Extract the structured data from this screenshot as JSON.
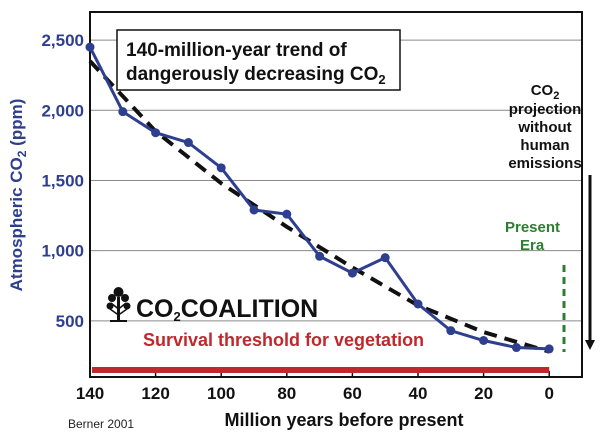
{
  "chart_data": {
    "type": "line",
    "title_line1": "140-million-year trend of",
    "title_line2_prefix": "dangerously decreasing CO",
    "title_line2_sub": "2",
    "ylabel_prefix": "Atmospheric CO",
    "ylabel_sub": "2",
    "ylabel_suffix": " (ppm)",
    "xlabel": "Million years before present",
    "xlim": [
      140,
      -10
    ],
    "ylim": [
      100,
      2700
    ],
    "x_ticks": [
      140,
      120,
      100,
      80,
      60,
      40,
      20,
      0
    ],
    "y_ticks": [
      500,
      1000,
      1500,
      2000,
      2500
    ],
    "y_tick_labels": [
      "500",
      "1,000",
      "1,500",
      "2,000",
      "2,500"
    ],
    "series": [
      {
        "x": [
          140,
          130,
          120,
          110,
          100,
          90,
          80,
          70,
          60,
          50,
          40,
          30,
          20,
          10,
          0
        ],
        "values": [
          2450,
          1990,
          1840,
          1770,
          1590,
          1290,
          1260,
          960,
          840,
          950,
          620,
          430,
          360,
          310,
          300
        ],
        "color": "#2e3f8f"
      }
    ],
    "trend_line": {
      "x": [
        140,
        120,
        100,
        80,
        60,
        40,
        20,
        0
      ],
      "values": [
        2350,
        1850,
        1480,
        1170,
        880,
        610,
        420,
        280
      ],
      "color": "#111111"
    },
    "survival_threshold": {
      "value": 150,
      "label": "Survival threshold for vegetation",
      "color": "#c0282d"
    },
    "present_era": {
      "label_line1": "Present",
      "label_line2": "Era",
      "color": "#2e7d32"
    },
    "projection": {
      "line1_prefix": "CO",
      "line1_sub": "2",
      "line2": "projection",
      "line3": "without",
      "line4": "human",
      "line5": "emissions"
    },
    "grid": true,
    "logo_text_prefix": "CO",
    "logo_text_sub": "2",
    "logo_text_suffix": "COALITION",
    "source": "Berner 2001"
  }
}
